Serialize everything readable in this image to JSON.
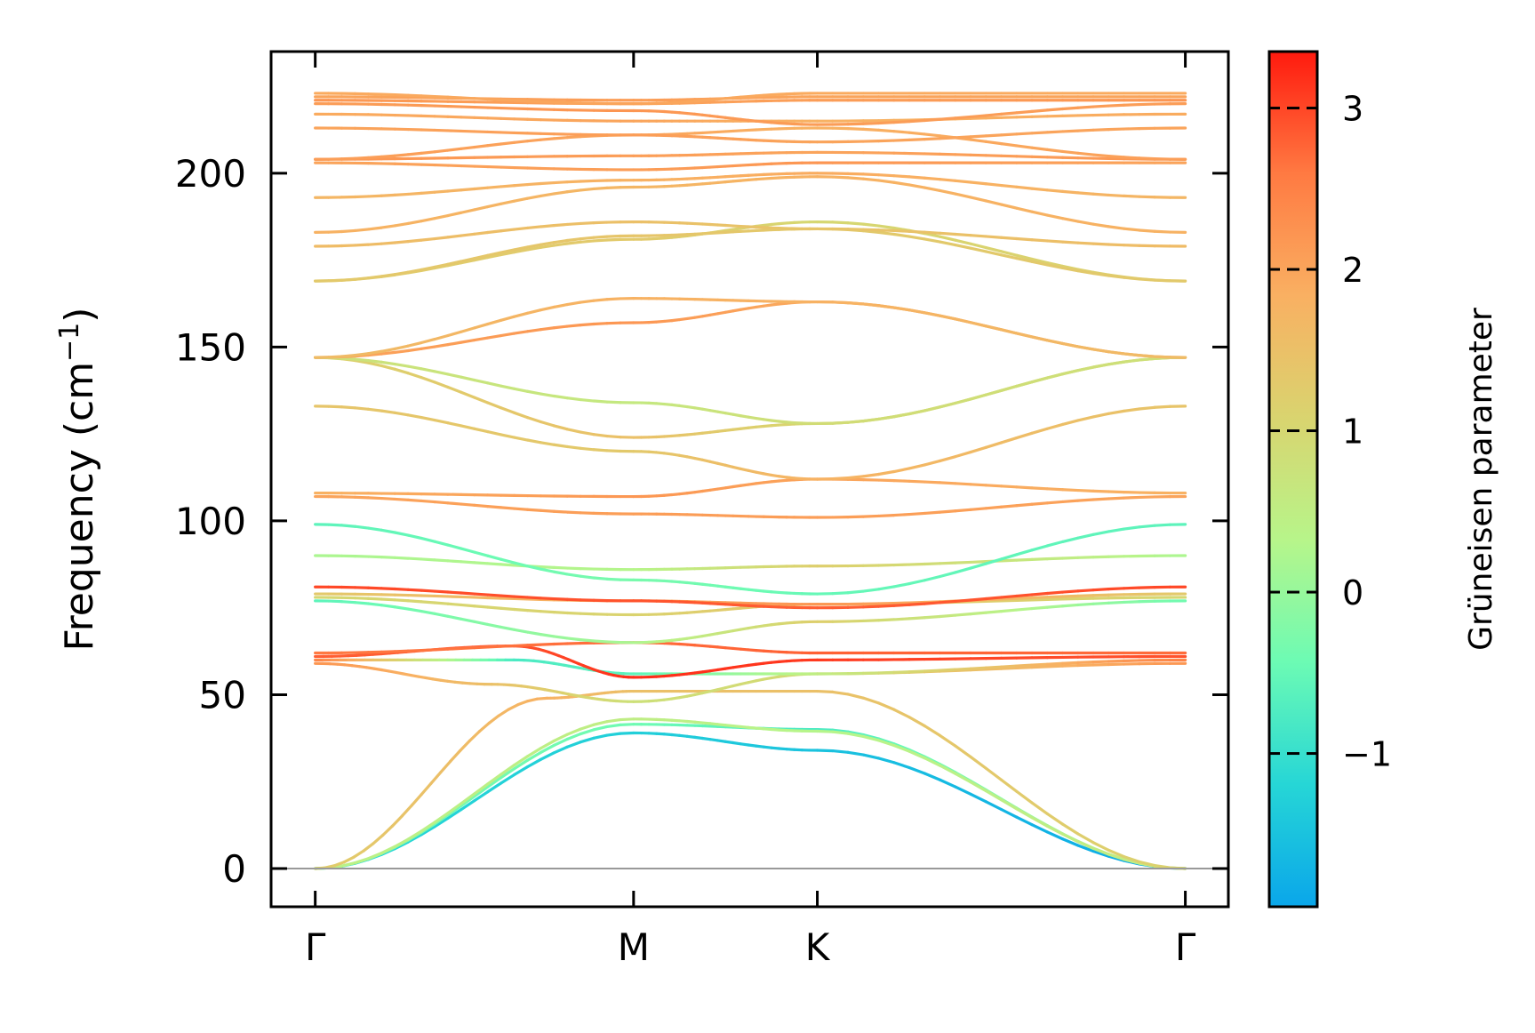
{
  "chart_data": {
    "type": "line",
    "title": "",
    "xlabel": "",
    "ylabel": "Frequency (cm",
    "ylabel_unit_sup": "−1",
    "ylabel_close": ")",
    "ylim": [
      -11,
      235
    ],
    "yticks": [
      0,
      50,
      100,
      150,
      200
    ],
    "xpoints": [
      {
        "label": "Γ",
        "pos": 0.0
      },
      {
        "label": "M",
        "pos": 0.577
      },
      {
        "label": "K",
        "pos": 0.91
      },
      {
        "label": "Γ",
        "pos": 1.577
      }
    ],
    "xlim": [
      -0.08,
      1.655
    ],
    "colorbar": {
      "label": "Grüneisen parameter",
      "range": [
        -1.95,
        3.35
      ],
      "ticks": [
        -1,
        0,
        1,
        2,
        3
      ],
      "tick_labels": [
        "−1",
        "0",
        "1",
        "2",
        "3"
      ],
      "colormap": [
        "#0aa6ea",
        "#26d6d6",
        "#6cfbb4",
        "#b7f58a",
        "#d9d46f",
        "#f9b062",
        "#ff7a42",
        "#ff1a0e"
      ]
    },
    "series": [
      {
        "x": [
          0,
          0.577,
          0.91,
          1.577
        ],
        "y": [
          0,
          39,
          34,
          0
        ],
        "g": [
          -1.2,
          -1.3,
          -1.5,
          -1.9
        ]
      },
      {
        "x": [
          0,
          0.577,
          0.91,
          1.577
        ],
        "y": [
          0,
          41.5,
          40,
          0
        ],
        "g": [
          -0.3,
          -0.4,
          -0.8,
          0.5
        ]
      },
      {
        "x": [
          0,
          0.577,
          0.91,
          1.577
        ],
        "y": [
          0,
          43,
          39.5,
          0
        ],
        "g": [
          0.4,
          0.5,
          0.3,
          0.6
        ]
      },
      {
        "x": [
          0,
          0.42,
          0.577,
          0.91,
          1.577
        ],
        "y": [
          0,
          49,
          51,
          51,
          0
        ],
        "g": [
          1.2,
          1.8,
          1.5,
          1.5,
          1.1
        ]
      },
      {
        "x": [
          0,
          0.32,
          0.577,
          0.91,
          1.577
        ],
        "y": [
          59,
          53,
          48,
          56,
          59
        ],
        "g": [
          2.2,
          1.5,
          0.8,
          1.0,
          2.2
        ]
      },
      {
        "x": [
          0,
          0.36,
          0.577,
          0.91,
          1.577
        ],
        "y": [
          60,
          60,
          56,
          56,
          60
        ],
        "g": [
          2.5,
          -0.8,
          -0.6,
          0.5,
          2.5
        ]
      },
      {
        "x": [
          0,
          0.36,
          0.577,
          0.91,
          1.577
        ],
        "y": [
          61,
          64,
          55,
          60,
          61
        ],
        "g": [
          2.8,
          2.9,
          3.2,
          3.1,
          2.9
        ]
      },
      {
        "x": [
          0,
          0.577,
          0.91,
          1.577
        ],
        "y": [
          62,
          65,
          62,
          62
        ],
        "g": [
          2.6,
          2.7,
          2.8,
          2.7
        ]
      },
      {
        "x": [
          0,
          0.577,
          0.91,
          1.577
        ],
        "y": [
          77,
          65,
          71,
          77
        ],
        "g": [
          -0.6,
          0.2,
          1.2,
          -0.4
        ]
      },
      {
        "x": [
          0,
          0.577,
          0.91,
          1.577
        ],
        "y": [
          78,
          73,
          76,
          78
        ],
        "g": [
          1.0,
          1.1,
          1.4,
          1.0
        ]
      },
      {
        "x": [
          0,
          0.577,
          0.91,
          1.577
        ],
        "y": [
          79,
          77,
          76,
          79
        ],
        "g": [
          1.3,
          2.0,
          2.2,
          1.3
        ]
      },
      {
        "x": [
          0,
          0.577,
          0.91,
          1.577
        ],
        "y": [
          81,
          77,
          75,
          81
        ],
        "g": [
          3.0,
          2.9,
          2.8,
          3.0
        ]
      },
      {
        "x": [
          0,
          0.577,
          0.91,
          1.577
        ],
        "y": [
          90,
          86,
          87,
          90
        ],
        "g": [
          0.2,
          0.3,
          1.2,
          0.2
        ]
      },
      {
        "x": [
          0,
          0.577,
          0.91,
          1.577
        ],
        "y": [
          99,
          83,
          79,
          99
        ],
        "g": [
          -0.6,
          -0.3,
          -0.5,
          -0.6
        ]
      },
      {
        "x": [
          0,
          0.577,
          0.91,
          1.577
        ],
        "y": [
          107,
          102,
          101,
          107
        ],
        "g": [
          2.0,
          2.1,
          2.1,
          2.0
        ]
      },
      {
        "x": [
          0,
          0.577,
          0.91,
          1.577
        ],
        "y": [
          108,
          107,
          112,
          108
        ],
        "g": [
          1.8,
          2.2,
          2.0,
          1.8
        ]
      },
      {
        "x": [
          0,
          0.577,
          0.91,
          1.577
        ],
        "y": [
          133,
          120,
          112,
          133
        ],
        "g": [
          1.4,
          1.3,
          1.8,
          1.4
        ]
      },
      {
        "x": [
          0,
          0.577,
          0.91,
          1.577
        ],
        "y": [
          147,
          124,
          128,
          147
        ],
        "g": [
          1.1,
          1.5,
          1.0,
          1.1
        ]
      },
      {
        "x": [
          0,
          0.577,
          0.91,
          1.577
        ],
        "y": [
          147,
          134,
          128,
          147
        ],
        "g": [
          0.8,
          0.6,
          0.9,
          0.8
        ]
      },
      {
        "x": [
          0,
          0.577,
          0.91,
          1.577
        ],
        "y": [
          147,
          157,
          163,
          147
        ],
        "g": [
          2.0,
          2.2,
          1.9,
          2.0
        ]
      },
      {
        "x": [
          0,
          0.577,
          0.91,
          1.577
        ],
        "y": [
          147,
          164,
          163,
          147
        ],
        "g": [
          1.6,
          1.8,
          1.8,
          1.6
        ]
      },
      {
        "x": [
          0,
          0.577,
          0.91,
          1.577
        ],
        "y": [
          169,
          181,
          186,
          169
        ],
        "g": [
          1.2,
          1.3,
          1.0,
          1.2
        ]
      },
      {
        "x": [
          0,
          0.577,
          0.91,
          1.577
        ],
        "y": [
          169,
          182,
          184,
          169
        ],
        "g": [
          1.3,
          1.4,
          1.3,
          1.3
        ]
      },
      {
        "x": [
          0,
          0.577,
          0.91,
          1.577
        ],
        "y": [
          179,
          186,
          184,
          179
        ],
        "g": [
          1.6,
          1.5,
          1.4,
          1.6
        ]
      },
      {
        "x": [
          0,
          0.577,
          0.91,
          1.577
        ],
        "y": [
          183,
          196,
          199,
          183
        ],
        "g": [
          1.8,
          1.7,
          1.8,
          1.8
        ]
      },
      {
        "x": [
          0,
          0.577,
          0.91,
          1.577
        ],
        "y": [
          193,
          198,
          200,
          193
        ],
        "g": [
          1.7,
          1.8,
          1.9,
          1.7
        ]
      },
      {
        "x": [
          0,
          0.577,
          0.91,
          1.577
        ],
        "y": [
          203,
          201,
          203,
          203
        ],
        "g": [
          2.0,
          2.1,
          2.2,
          2.0
        ]
      },
      {
        "x": [
          0,
          0.577,
          0.91,
          1.577
        ],
        "y": [
          204,
          205,
          206,
          204
        ],
        "g": [
          2.2,
          2.1,
          2.0,
          2.2
        ]
      },
      {
        "x": [
          0,
          0.577,
          0.91,
          1.577
        ],
        "y": [
          204,
          211,
          213,
          204
        ],
        "g": [
          2.1,
          2.0,
          1.8,
          2.1
        ]
      },
      {
        "x": [
          0,
          0.577,
          0.91,
          1.577
        ],
        "y": [
          213,
          211,
          209,
          213
        ],
        "g": [
          2.0,
          2.1,
          2.0,
          2.0
        ]
      },
      {
        "x": [
          0,
          0.577,
          0.91,
          1.577
        ],
        "y": [
          217,
          215,
          215,
          217
        ],
        "g": [
          1.9,
          2.0,
          1.8,
          1.9
        ]
      },
      {
        "x": [
          0,
          0.577,
          0.91,
          1.577
        ],
        "y": [
          220,
          218,
          214,
          220
        ],
        "g": [
          2.1,
          2.2,
          2.1,
          2.1
        ]
      },
      {
        "x": [
          0,
          0.577,
          0.91,
          1.577
        ],
        "y": [
          221,
          220,
          221,
          221
        ],
        "g": [
          2.2,
          2.0,
          2.1,
          2.2
        ]
      },
      {
        "x": [
          0,
          0.577,
          0.91,
          1.577
        ],
        "y": [
          222,
          221,
          222,
          222
        ],
        "g": [
          2.0,
          2.1,
          2.0,
          2.0
        ]
      },
      {
        "x": [
          0,
          0.577,
          0.91,
          1.577
        ],
        "y": [
          223,
          220,
          223,
          223
        ],
        "g": [
          1.9,
          2.0,
          1.9,
          1.9
        ]
      }
    ]
  }
}
